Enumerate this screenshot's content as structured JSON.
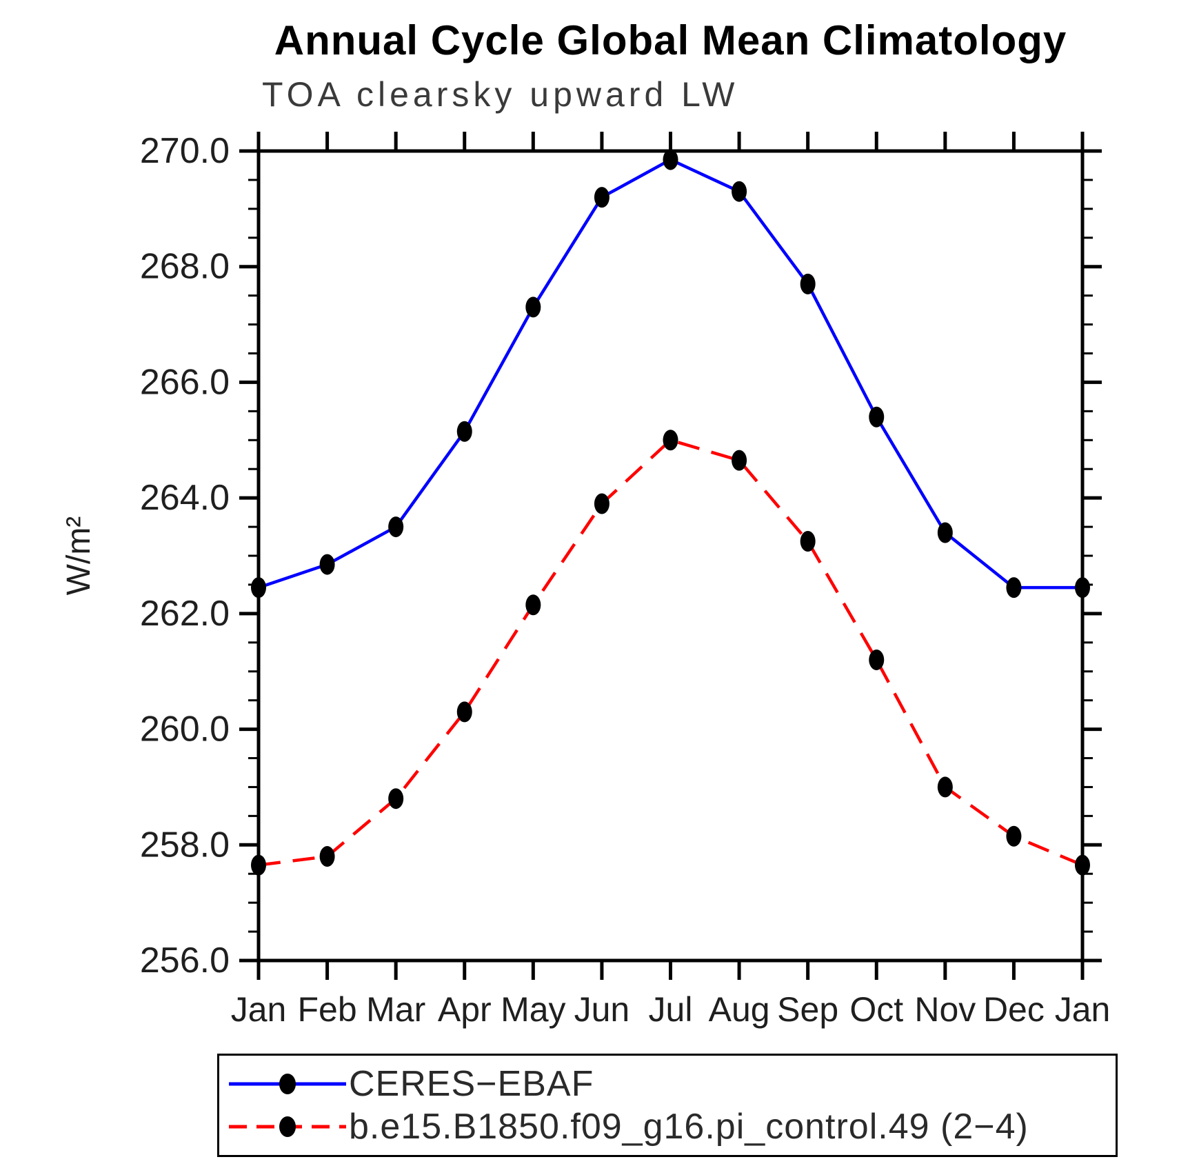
{
  "page": {
    "title": "Annual Cycle Global Mean Climatology"
  },
  "chart_data": {
    "type": "line",
    "title": "Annual Cycle Global Mean Climatology",
    "subtitle": "TOA clearsky upward LW",
    "ylabel": "W/m²",
    "xlabel": "",
    "categories": [
      "Jan",
      "Feb",
      "Mar",
      "Apr",
      "May",
      "Jun",
      "Jul",
      "Aug",
      "Sep",
      "Oct",
      "Nov",
      "Dec",
      "Jan"
    ],
    "ylim": [
      256.0,
      270.0
    ],
    "ytick_interval": 2.0,
    "ytick_minor_interval": 0.5,
    "ytick_labels": [
      "256.0",
      "258.0",
      "260.0",
      "262.0",
      "264.0",
      "266.0",
      "268.0",
      "270.0"
    ],
    "grid": false,
    "frame": "box-with-outward-ticks",
    "legend_position": "bottom-left-box",
    "axis_color": "#000000",
    "series": [
      {
        "name": "CERES−EBAF",
        "color": "#0000ff",
        "line_style": "solid",
        "marker": "filled-circle",
        "marker_color": "#000000",
        "values": [
          262.45,
          262.85,
          263.5,
          265.15,
          267.3,
          269.2,
          269.85,
          269.3,
          267.7,
          265.4,
          263.4,
          262.45,
          262.45
        ]
      },
      {
        "name": "b.e15.B1850.f09_g16.pi_control.49 (2−4)",
        "color": "#ff0000",
        "line_style": "dashed",
        "marker": "filled-circle",
        "marker_color": "#000000",
        "values": [
          257.65,
          257.8,
          258.8,
          260.3,
          262.15,
          263.9,
          265.0,
          264.65,
          263.25,
          261.2,
          259.0,
          258.15,
          257.65
        ]
      }
    ]
  }
}
